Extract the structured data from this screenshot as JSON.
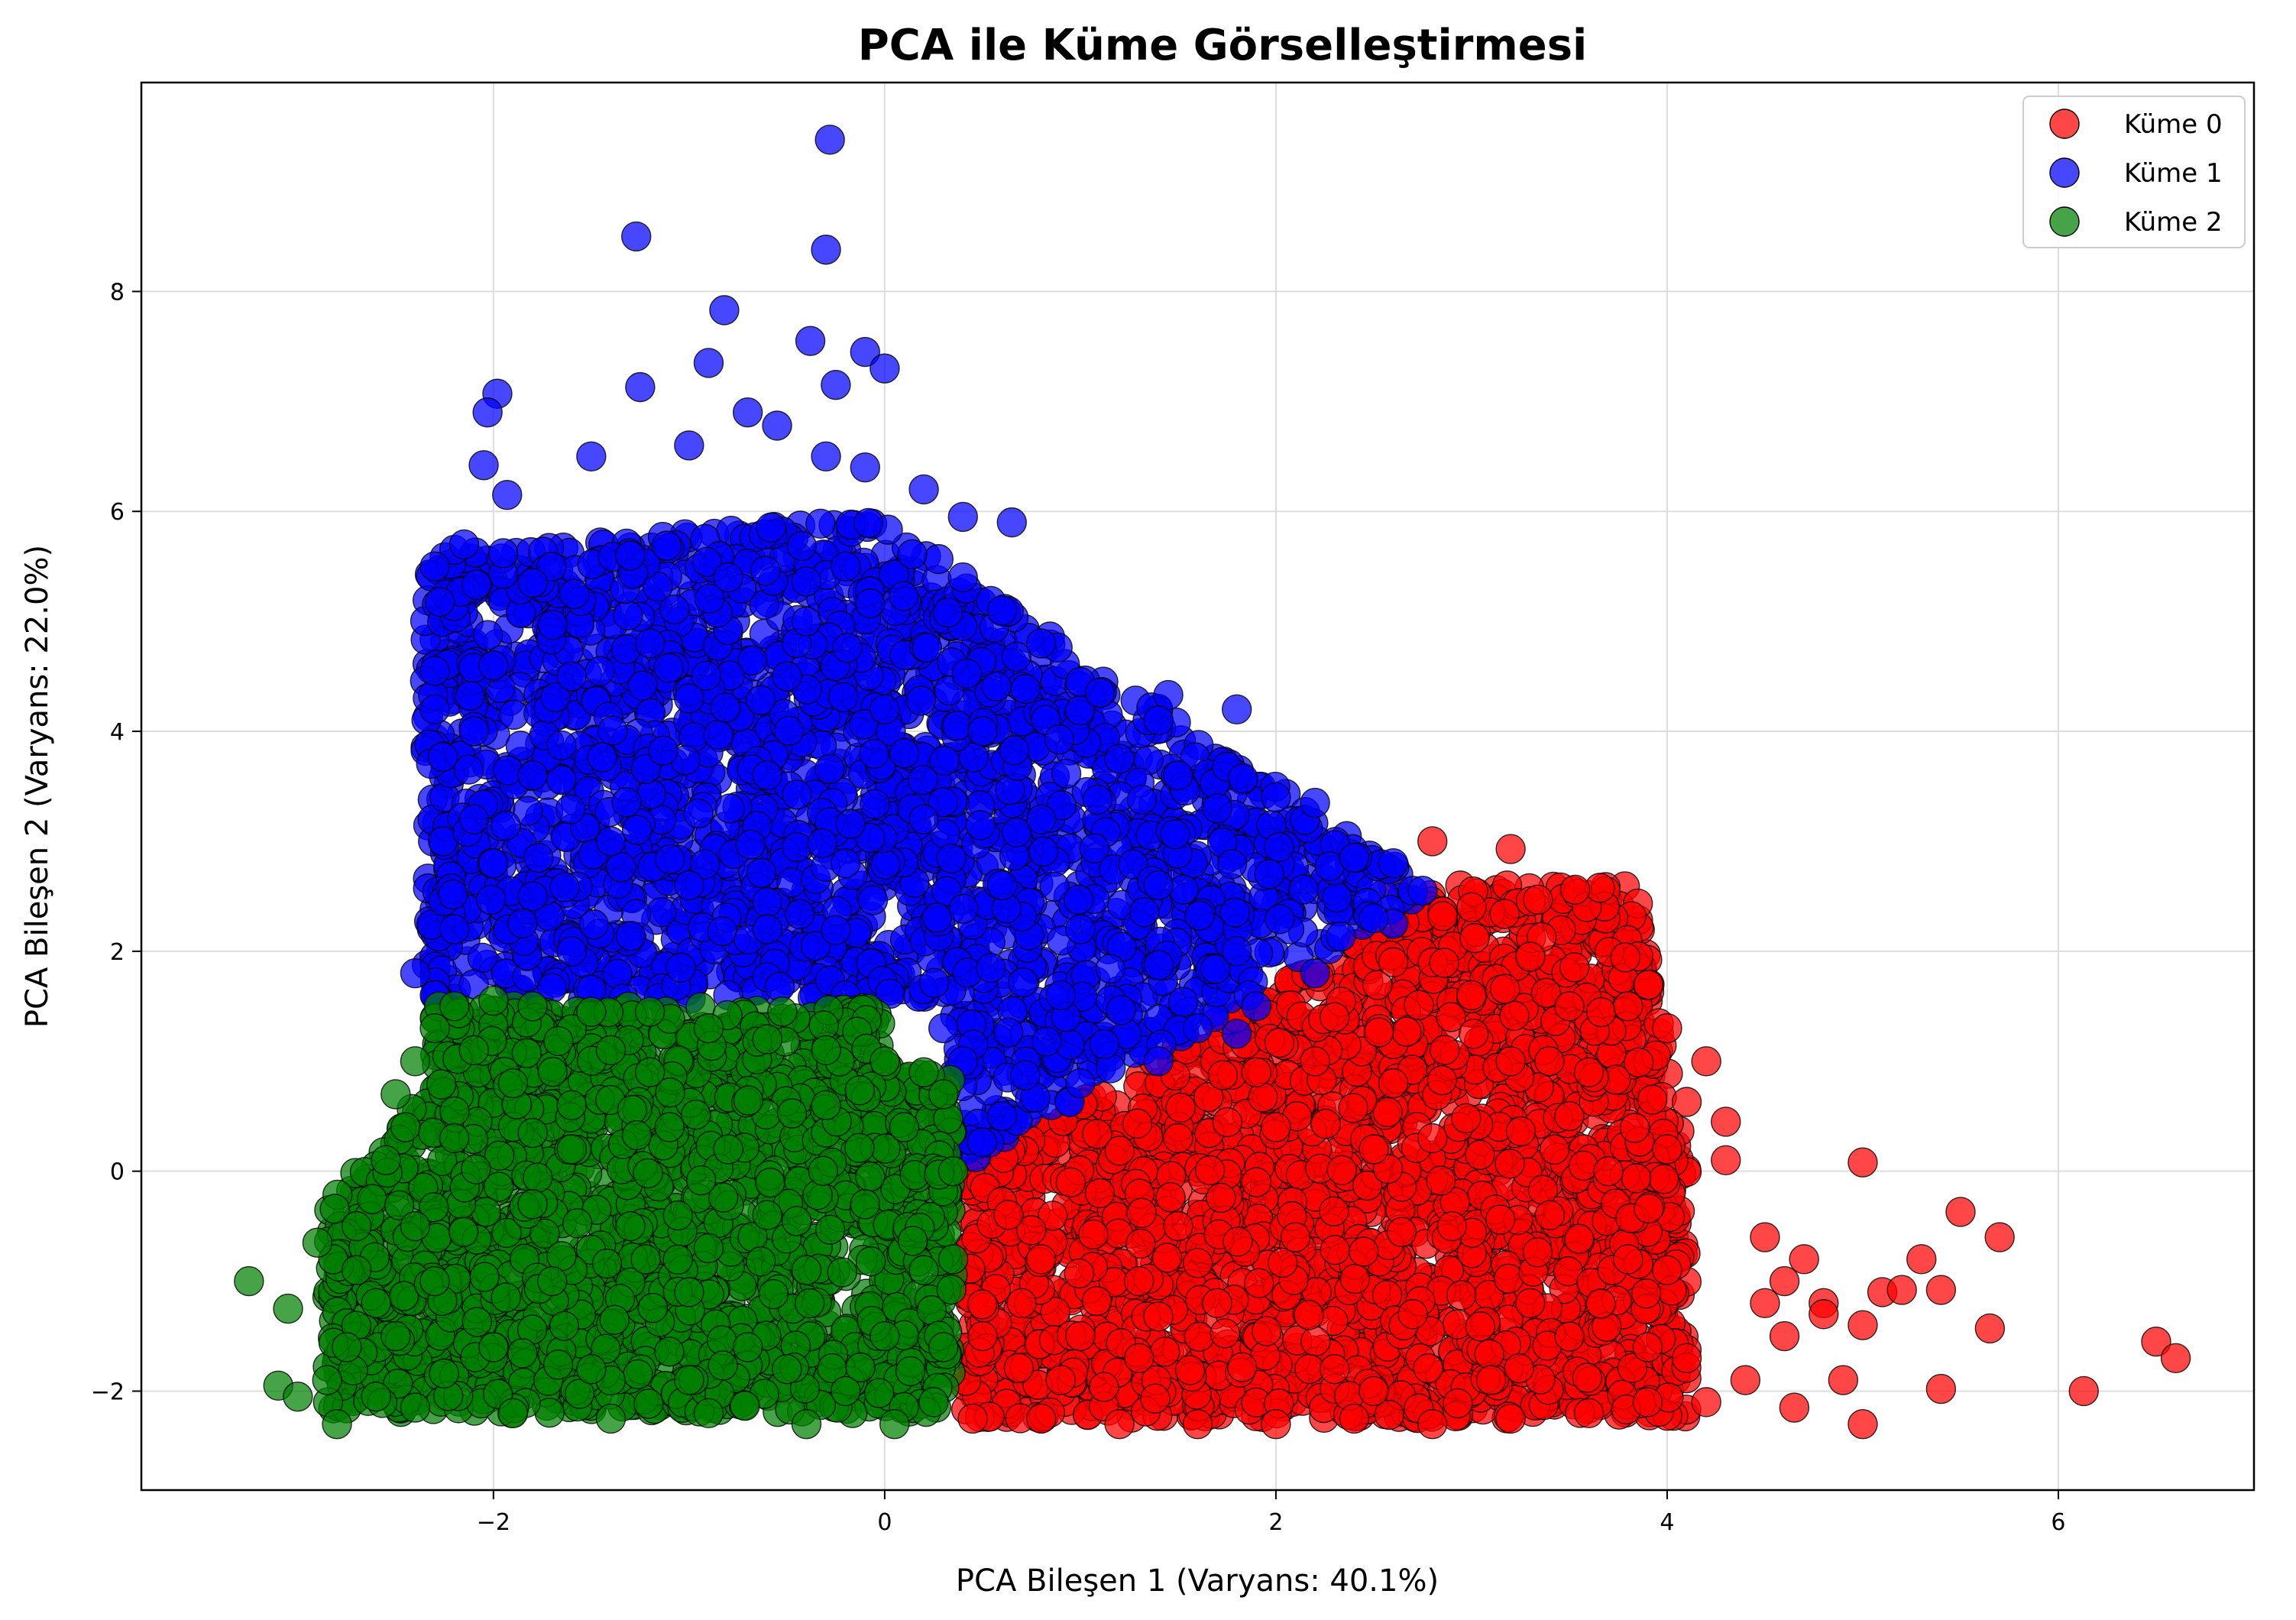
{
  "chart_data": {
    "type": "scatter",
    "title": "PCA ile Küme Görselleştirmesi",
    "xlabel": "PCA Bileşen 1 (Varyans: 40.1%)",
    "ylabel": "PCA Bileşen 2 (Varyans: 22.0%)",
    "xlim": [
      -3.8,
      7.0
    ],
    "ylim": [
      -2.9,
      9.9
    ],
    "xticks": [
      -2,
      0,
      2,
      4,
      6
    ],
    "yticks": [
      -2,
      0,
      2,
      4,
      6,
      8
    ],
    "xtick_labels": [
      "−2",
      "0",
      "2",
      "4",
      "6"
    ],
    "ytick_labels": [
      "−2",
      "0",
      "2",
      "4",
      "6",
      "8"
    ],
    "grid": true,
    "legend_position": "top-right",
    "series": [
      {
        "name": "Küme 0",
        "color": "#ff0000",
        "points": [
          [
            2.8,
            3.0
          ],
          [
            3.2,
            2.93
          ],
          [
            3.0,
            2.4
          ],
          [
            2.6,
            2.6
          ],
          [
            3.3,
            1.95
          ],
          [
            3.5,
            1.5
          ],
          [
            3.8,
            1.5
          ],
          [
            4.0,
            1.3
          ],
          [
            4.2,
            1.0
          ],
          [
            4.3,
            0.45
          ],
          [
            4.1,
            0.63
          ],
          [
            4.0,
            0.2
          ],
          [
            4.3,
            0.1
          ],
          [
            4.5,
            -0.6
          ],
          [
            4.6,
            -1.0
          ],
          [
            4.7,
            -0.8
          ],
          [
            4.5,
            -1.2
          ],
          [
            4.6,
            -1.5
          ],
          [
            4.8,
            -1.2
          ],
          [
            4.9,
            -1.9
          ],
          [
            5.0,
            0.08
          ],
          [
            5.0,
            -1.4
          ],
          [
            5.1,
            -1.1
          ],
          [
            5.2,
            -1.08
          ],
          [
            5.3,
            -0.8
          ],
          [
            5.4,
            -1.08
          ],
          [
            5.5,
            -0.37
          ],
          [
            5.7,
            -0.6
          ],
          [
            5.65,
            -1.43
          ],
          [
            5.0,
            -2.3
          ],
          [
            5.4,
            -1.98
          ],
          [
            6.13,
            -2.0
          ],
          [
            6.5,
            -1.55
          ],
          [
            6.6,
            -1.7
          ],
          [
            4.8,
            -1.3
          ],
          [
            4.65,
            -2.15
          ],
          [
            3.9,
            -1.6
          ],
          [
            3.6,
            -2.2
          ],
          [
            3.2,
            -2.25
          ],
          [
            2.8,
            -2.3
          ],
          [
            2.4,
            -2.25
          ],
          [
            2.0,
            -2.3
          ],
          [
            1.6,
            -2.3
          ],
          [
            1.2,
            -2.3
          ],
          [
            0.8,
            -2.25
          ],
          [
            0.45,
            -2.25
          ],
          [
            0.5,
            -1.5
          ],
          [
            0.8,
            -0.8
          ],
          [
            1.1,
            -0.2
          ],
          [
            1.5,
            0.3
          ],
          [
            1.9,
            0.9
          ],
          [
            2.3,
            1.4
          ],
          [
            2.6,
            1.9
          ],
          [
            3.0,
            1.6
          ],
          [
            3.2,
            1.0
          ],
          [
            3.5,
            0.5
          ],
          [
            3.7,
            0.0
          ],
          [
            3.8,
            -0.8
          ],
          [
            3.3,
            -1.2
          ],
          [
            2.9,
            -0.5
          ],
          [
            2.5,
            0.2
          ],
          [
            2.1,
            -0.6
          ],
          [
            1.7,
            -1.2
          ],
          [
            1.3,
            -1.7
          ],
          [
            0.9,
            -1.9
          ],
          [
            2.3,
            -1.8
          ],
          [
            2.7,
            -1.3
          ],
          [
            3.1,
            -1.9
          ],
          [
            1.5,
            -0.5
          ],
          [
            1.9,
            -0.1
          ],
          [
            2.6,
            0.8
          ],
          [
            3.4,
            -0.4
          ],
          [
            0.7,
            -1.2
          ],
          [
            1.0,
            -1.5
          ],
          [
            2.0,
            0.4
          ],
          [
            2.8,
            0.3
          ],
          [
            4.1,
            -1.7
          ],
          [
            4.2,
            -2.1
          ],
          [
            4.4,
            -1.9
          ],
          [
            4.0,
            -0.9
          ],
          [
            3.6,
            0.9
          ],
          [
            2.2,
            1.0
          ],
          [
            1.3,
            -1.0
          ],
          [
            2.5,
            -2.0
          ],
          [
            3.9,
            -2.1
          ]
        ]
      },
      {
        "name": "Küme 1",
        "color": "#0000ff",
        "points": [
          [
            -0.28,
            9.38
          ],
          [
            -1.27,
            8.5
          ],
          [
            -0.3,
            8.38
          ],
          [
            -0.82,
            7.83
          ],
          [
            -0.38,
            7.55
          ],
          [
            -0.1,
            7.45
          ],
          [
            0.0,
            7.3
          ],
          [
            -0.9,
            7.35
          ],
          [
            -1.98,
            7.07
          ],
          [
            -1.25,
            7.13
          ],
          [
            -2.03,
            6.9
          ],
          [
            -0.25,
            7.15
          ],
          [
            -0.7,
            6.9
          ],
          [
            -0.55,
            6.78
          ],
          [
            -1.0,
            6.6
          ],
          [
            -2.05,
            6.42
          ],
          [
            -1.93,
            6.15
          ],
          [
            -1.5,
            6.5
          ],
          [
            -0.3,
            6.5
          ],
          [
            -0.1,
            6.4
          ],
          [
            0.2,
            6.2
          ],
          [
            0.65,
            5.9
          ],
          [
            0.4,
            5.95
          ],
          [
            -2.2,
            5.65
          ],
          [
            -2.15,
            5.7
          ],
          [
            -1.95,
            5.62
          ],
          [
            -2.3,
            5.5
          ],
          [
            -1.8,
            5.35
          ],
          [
            -1.3,
            5.6
          ],
          [
            -0.8,
            5.4
          ],
          [
            -0.2,
            5.5
          ],
          [
            0.4,
            5.4
          ],
          [
            0.6,
            5.1
          ],
          [
            0.8,
            4.8
          ],
          [
            1.0,
            4.45
          ],
          [
            1.1,
            4.35
          ],
          [
            1.45,
            4.33
          ],
          [
            1.4,
            4.1
          ],
          [
            1.8,
            4.2
          ],
          [
            -2.3,
            4.55
          ],
          [
            -2.3,
            4.2
          ],
          [
            -2.0,
            4.6
          ],
          [
            -2.1,
            4.0
          ],
          [
            -1.6,
            4.5
          ],
          [
            -1.0,
            4.3
          ],
          [
            -0.5,
            4.5
          ],
          [
            0.0,
            4.2
          ],
          [
            0.5,
            4.0
          ],
          [
            1.2,
            3.75
          ],
          [
            1.5,
            3.6
          ],
          [
            1.7,
            3.3
          ],
          [
            2.0,
            3.4
          ],
          [
            2.2,
            3.35
          ],
          [
            2.4,
            2.85
          ],
          [
            2.6,
            2.8
          ],
          [
            2.7,
            2.55
          ],
          [
            2.75,
            2.55
          ],
          [
            2.6,
            2.25
          ],
          [
            2.5,
            2.3
          ],
          [
            2.2,
            1.8
          ],
          [
            1.9,
            1.5
          ],
          [
            1.6,
            1.3
          ],
          [
            1.8,
            1.25
          ],
          [
            1.4,
            1.0
          ],
          [
            1.0,
            0.8
          ],
          [
            0.6,
            0.5
          ],
          [
            0.3,
            0.2
          ],
          [
            0.4,
            1.0
          ],
          [
            0.3,
            1.3
          ],
          [
            -0.2,
            1.6
          ],
          [
            -0.8,
            1.6
          ],
          [
            -1.5,
            1.65
          ],
          [
            -2.1,
            1.7
          ],
          [
            -2.3,
            1.6
          ],
          [
            -2.4,
            1.8
          ],
          [
            -2.2,
            2.2
          ],
          [
            -2.0,
            2.8
          ],
          [
            -2.1,
            3.2
          ],
          [
            -1.8,
            3.6
          ],
          [
            -1.4,
            3.0
          ],
          [
            -1.0,
            2.6
          ],
          [
            -0.6,
            2.2
          ],
          [
            -0.2,
            2.8
          ],
          [
            0.2,
            3.2
          ],
          [
            0.6,
            2.6
          ],
          [
            1.0,
            2.2
          ],
          [
            1.4,
            2.6
          ],
          [
            1.8,
            2.0
          ],
          [
            -1.2,
            4.8
          ],
          [
            -0.6,
            3.6
          ],
          [
            0.1,
            3.8
          ],
          [
            0.8,
            3.2
          ],
          [
            -1.6,
            2.0
          ],
          [
            -0.4,
            5.0
          ],
          [
            0.9,
            1.6
          ],
          [
            -1.8,
            2.5
          ]
        ]
      },
      {
        "name": "Küme 2",
        "color": "#008000",
        "points": [
          [
            -3.25,
            -1.0
          ],
          [
            -3.05,
            -1.25
          ],
          [
            -3.1,
            -1.95
          ],
          [
            -3.0,
            -2.05
          ],
          [
            -2.9,
            -0.65
          ],
          [
            -2.85,
            -1.9
          ],
          [
            -2.8,
            -2.3
          ],
          [
            -2.75,
            -1.6
          ],
          [
            -2.7,
            -0.5
          ],
          [
            -2.6,
            -2.05
          ],
          [
            -2.55,
            0.1
          ],
          [
            -2.5,
            0.7
          ],
          [
            -2.45,
            0.4
          ],
          [
            -2.4,
            1.0
          ],
          [
            -2.3,
            1.3
          ],
          [
            -2.2,
            1.5
          ],
          [
            -2.0,
            1.55
          ],
          [
            -1.8,
            1.5
          ],
          [
            -1.5,
            1.45
          ],
          [
            -1.2,
            1.45
          ],
          [
            -0.9,
            1.3
          ],
          [
            -0.6,
            1.2
          ],
          [
            -0.3,
            1.1
          ],
          [
            0.0,
            1.0
          ],
          [
            0.2,
            0.9
          ],
          [
            0.3,
            0.7
          ],
          [
            0.35,
            0.0
          ],
          [
            0.35,
            -0.8
          ],
          [
            0.3,
            -1.6
          ],
          [
            0.25,
            -2.1
          ],
          [
            0.05,
            -2.3
          ],
          [
            -0.4,
            -2.3
          ],
          [
            -0.9,
            -2.2
          ],
          [
            -1.4,
            -2.25
          ],
          [
            -1.9,
            -2.2
          ],
          [
            -2.4,
            -2.15
          ],
          [
            -2.6,
            -1.2
          ],
          [
            -2.4,
            -0.5
          ],
          [
            -2.2,
            0.3
          ],
          [
            -1.9,
            0.8
          ],
          [
            -1.6,
            0.2
          ],
          [
            -1.3,
            -0.5
          ],
          [
            -1.0,
            -1.1
          ],
          [
            -0.7,
            -1.6
          ],
          [
            -0.4,
            -0.9
          ],
          [
            -0.1,
            -0.3
          ],
          [
            0.1,
            0.4
          ],
          [
            -0.3,
            0.6
          ],
          [
            -0.8,
            0.2
          ],
          [
            -1.2,
            0.9
          ],
          [
            -1.7,
            -1.0
          ],
          [
            -2.0,
            -1.6
          ],
          [
            -1.5,
            -1.8
          ],
          [
            -1.0,
            -1.9
          ],
          [
            -0.5,
            -1.8
          ],
          [
            0.0,
            -1.5
          ],
          [
            -2.3,
            -1.0
          ],
          [
            -1.8,
            -0.3
          ],
          [
            -1.1,
            0.4
          ],
          [
            -0.6,
            -0.4
          ],
          [
            0.2,
            -0.9
          ],
          [
            -2.1,
            1.1
          ],
          [
            -1.4,
            1.1
          ],
          [
            -0.2,
            -2.0
          ],
          [
            -2.7,
            -0.9
          ],
          [
            -2.5,
            -1.5
          ],
          [
            -0.9,
            -0.7
          ],
          [
            -1.6,
            0.6
          ]
        ]
      }
    ]
  }
}
